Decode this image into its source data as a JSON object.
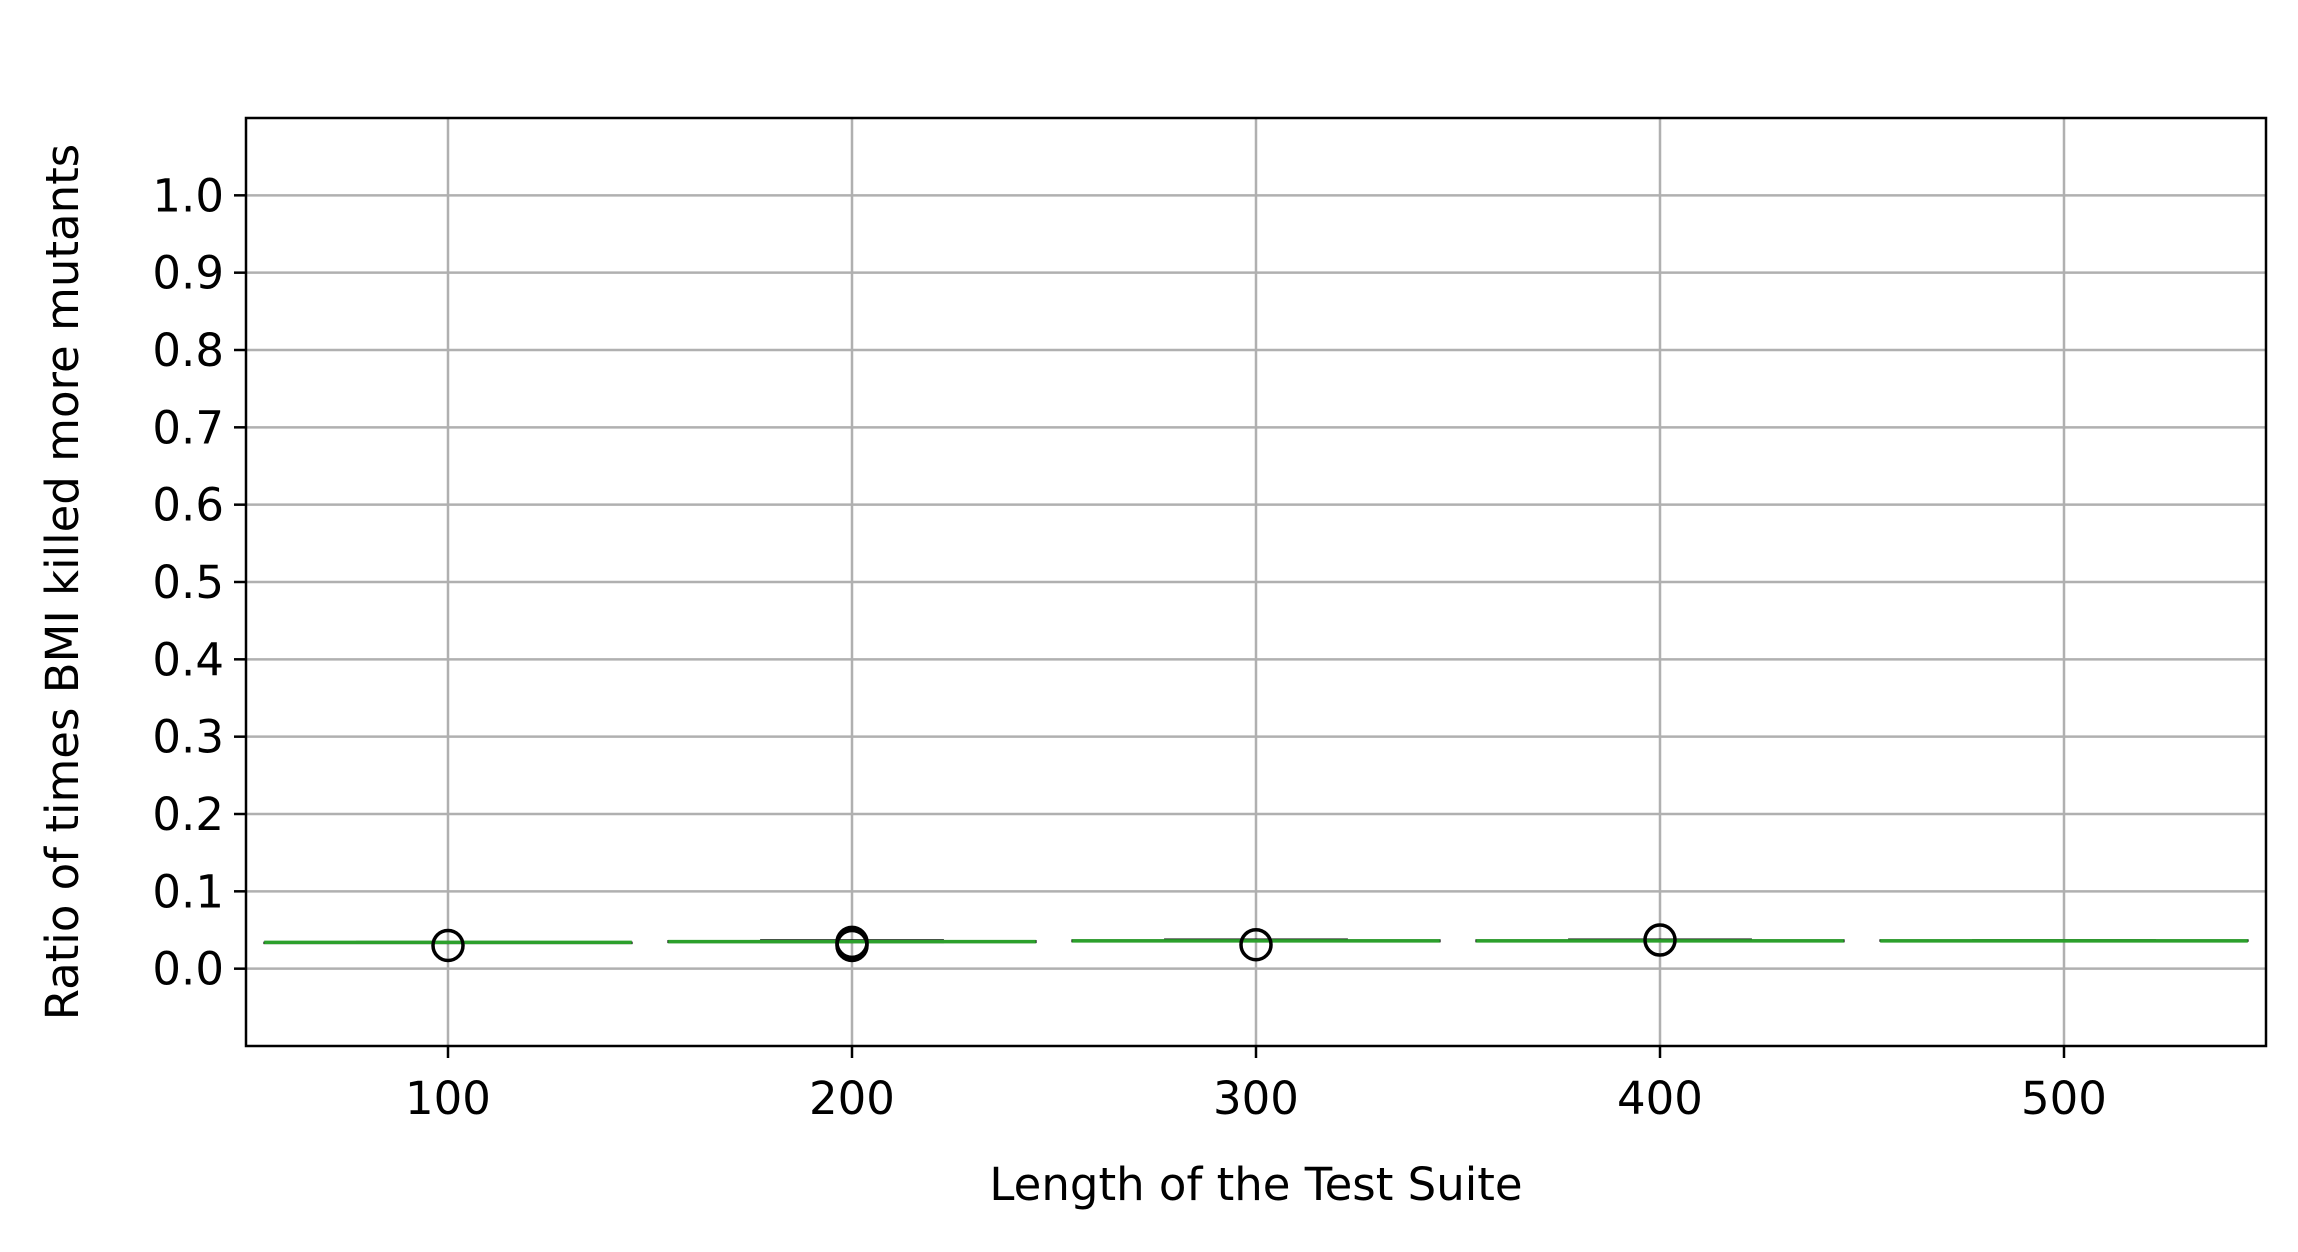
{
  "chart_data": {
    "type": "box",
    "title": "",
    "xlabel": "Length of the Test Suite",
    "ylabel": "Ratio of times BMI killed more mutants",
    "categories": [
      "100",
      "200",
      "300",
      "400",
      "500"
    ],
    "y_ticks": [
      "0.0",
      "0.1",
      "0.2",
      "0.3",
      "0.4",
      "0.5",
      "0.6",
      "0.7",
      "0.8",
      "0.9",
      "1.0"
    ],
    "ylim": [
      -0.1,
      1.1
    ],
    "grid": true,
    "boxes": [
      {
        "category": "100",
        "whisker_low": 0.033,
        "q1": 0.033,
        "median": 0.034,
        "q3": 0.034,
        "whisker_high": 0.035,
        "outliers": [
          0.03
        ]
      },
      {
        "category": "200",
        "whisker_low": 0.034,
        "q1": 0.034,
        "median": 0.035,
        "q3": 0.036,
        "whisker_high": 0.037,
        "outliers": [
          0.03,
          0.032,
          0.034
        ]
      },
      {
        "category": "300",
        "whisker_low": 0.035,
        "q1": 0.035,
        "median": 0.036,
        "q3": 0.037,
        "whisker_high": 0.038,
        "outliers": [
          0.031
        ]
      },
      {
        "category": "400",
        "whisker_low": 0.035,
        "q1": 0.035,
        "median": 0.036,
        "q3": 0.037,
        "whisker_high": 0.038,
        "outliers": [
          0.037
        ]
      },
      {
        "category": "500",
        "whisker_low": 0.036,
        "q1": 0.036,
        "median": 0.036,
        "q3": 0.037,
        "whisker_high": 0.037,
        "outliers": []
      }
    ],
    "colors": {
      "median": "#2ca02c",
      "box": "#000000",
      "grid": "#b0b0b0",
      "outlier": "#000000"
    }
  }
}
